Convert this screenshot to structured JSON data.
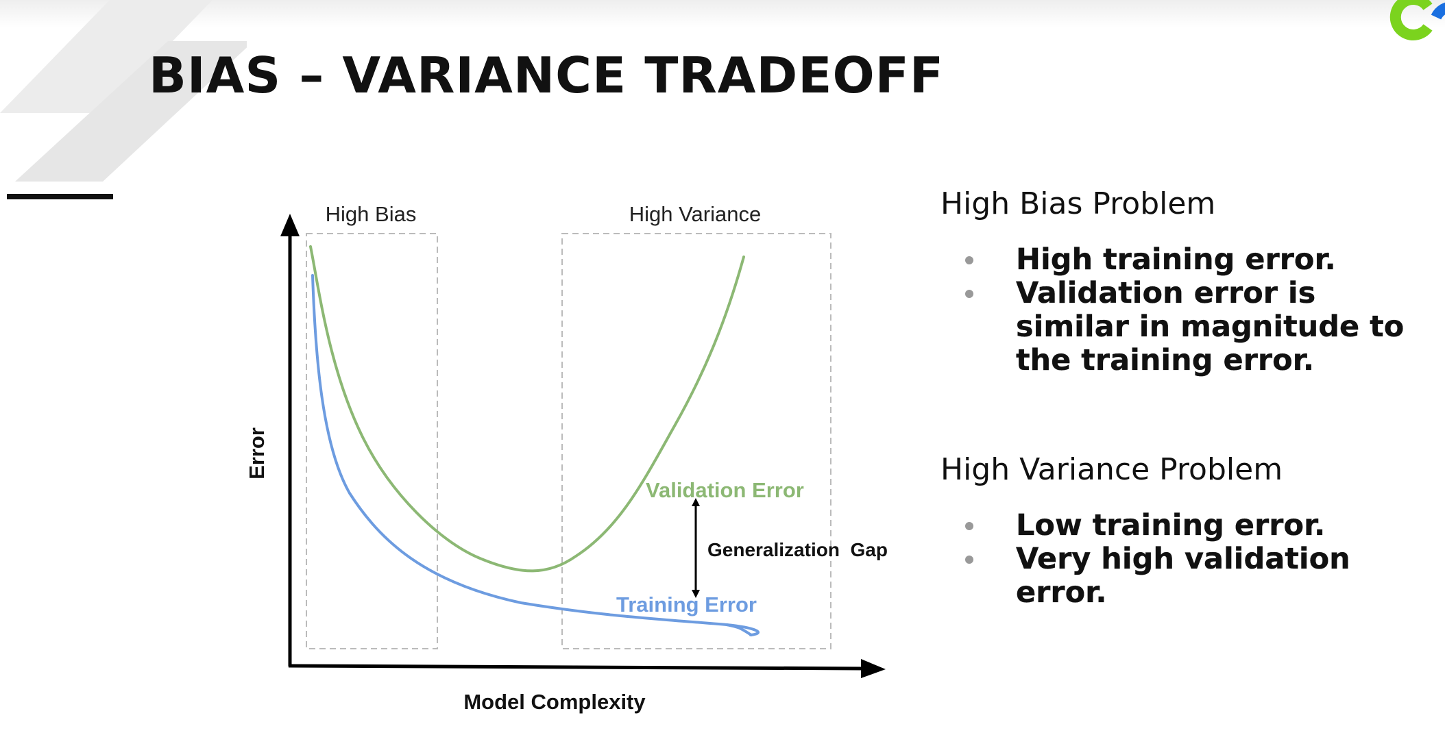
{
  "slide": {
    "title": "BIAS – VARIANCE TRADEOFF"
  },
  "figure": {
    "region_labels": {
      "high_bias": "High Bias",
      "high_variance": "High Variance"
    },
    "axis_labels": {
      "y": "Error",
      "x": "Model Complexity"
    },
    "curve_labels": {
      "validation": "Validation Error",
      "training": "Training Error",
      "gap": "Generalization  Gap"
    },
    "colors": {
      "validation": "#8cb874",
      "training": "#6d9ce0",
      "axis": "#000000",
      "region_border": "#bbbbbb",
      "gap_arrow": "#000000"
    }
  },
  "panel": {
    "sections": [
      {
        "heading": "High Bias Problem",
        "items": [
          "High training error.",
          "Validation error is similar in magnitude to the training error."
        ]
      },
      {
        "heading": "High Variance Problem",
        "items": [
          "Low training error.",
          "Very high validation error."
        ]
      }
    ]
  },
  "decor": {
    "brand_colors": {
      "logo_green": "#7bd31e",
      "logo_blue": "#1a6fe0"
    }
  }
}
